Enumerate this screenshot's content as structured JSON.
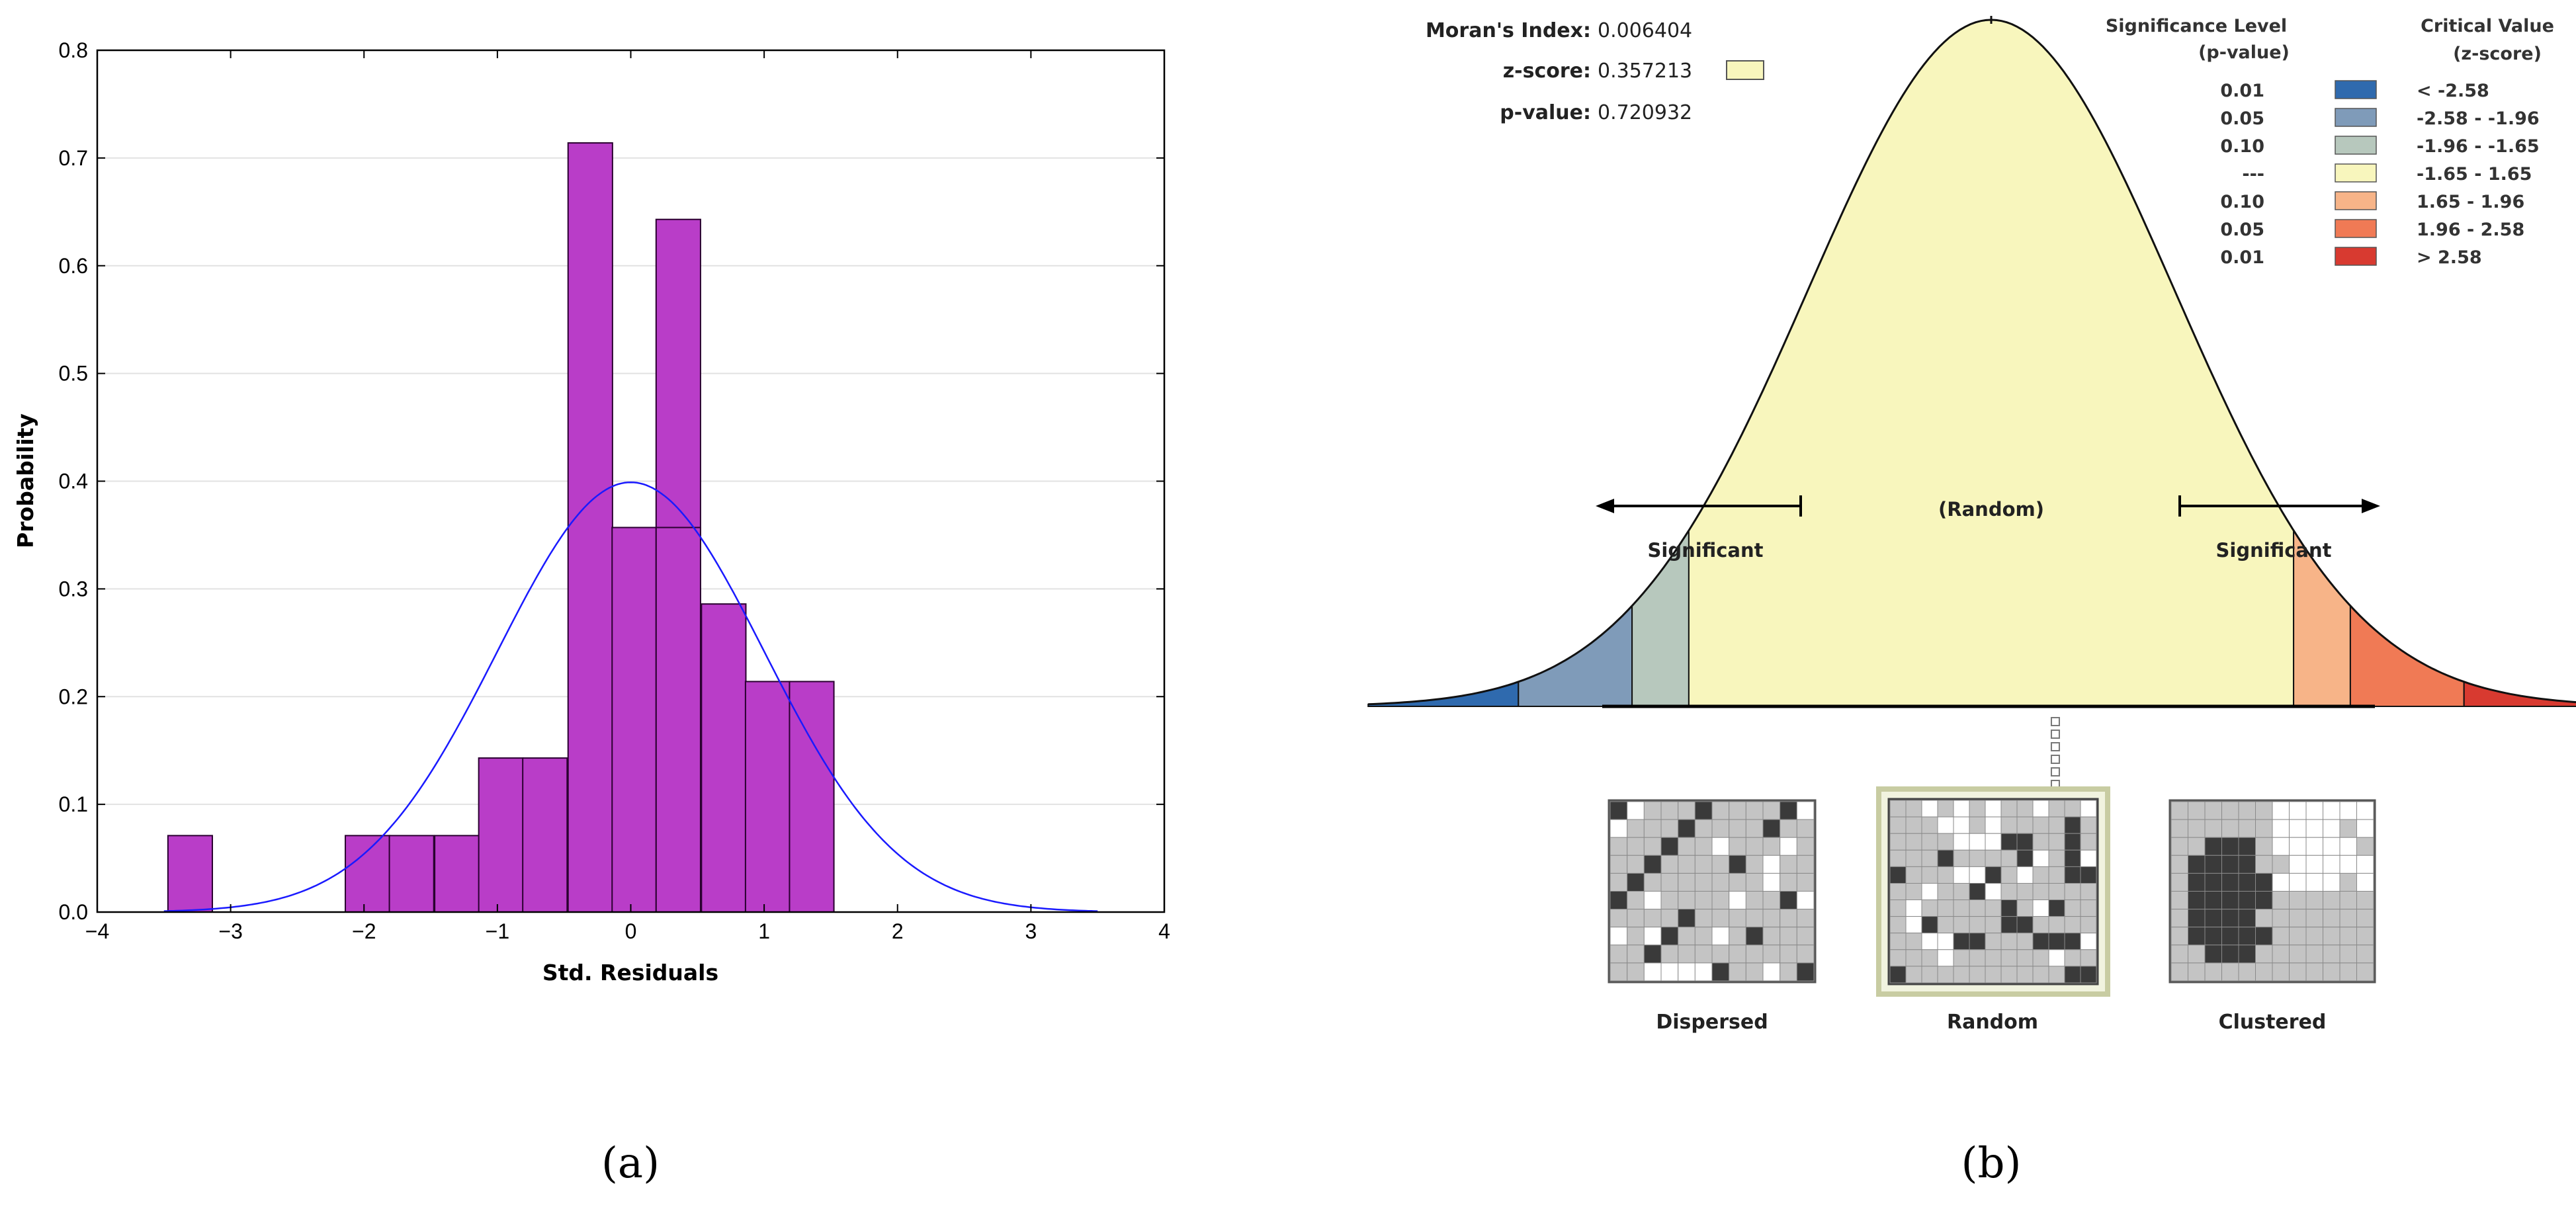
{
  "chart_data": [
    {
      "type": "bar",
      "title": "",
      "xlabel": "Std. Residuals",
      "ylabel": "Probability",
      "xlim": [
        -4,
        4
      ],
      "ylim": [
        0,
        0.8
      ],
      "xticks": [
        "−4",
        "−3",
        "−2",
        "−1",
        "0",
        "1",
        "2",
        "3",
        "4"
      ],
      "yticks": [
        "0.0",
        "0.1",
        "0.2",
        "0.3",
        "0.4",
        "0.5",
        "0.6",
        "0.7",
        "0.8"
      ],
      "bin_width": 0.333,
      "bins": [
        {
          "left": -3.47,
          "value": 0.071
        },
        {
          "left": -2.14,
          "value": 0.071
        },
        {
          "left": -1.81,
          "value": 0.071
        },
        {
          "left": -1.47,
          "value": 0.071
        },
        {
          "left": -1.14,
          "value": 0.143
        },
        {
          "left": -0.81,
          "value": 0.143
        },
        {
          "left": -0.47,
          "value": 0.714
        },
        {
          "left": -0.14,
          "value": 0.357
        },
        {
          "left": 0.19,
          "value": 0.643
        },
        {
          "left": 0.19,
          "value": 0.357
        },
        {
          "left": 0.53,
          "value": 0.286
        },
        {
          "left": 0.86,
          "value": 0.214
        },
        {
          "left": 1.19,
          "value": 0.214
        }
      ],
      "curve": {
        "name": "Normal PDF (mean 0, sd 1)",
        "mean": 0,
        "sd": 1,
        "xrange": [
          -3.5,
          3.5
        ]
      },
      "grid": true,
      "colors": {
        "bar": "#b93dc8",
        "bar_edge": "#2a0030",
        "curve": "#1a1aff",
        "grid": "#e2e2e2"
      },
      "caption": "(a)"
    },
    {
      "type": "diagram",
      "stats": {
        "morans_index_label": "Moran's Index:",
        "morans_index": "0.006404",
        "zscore_label": "z-score:",
        "zscore": "0.357213",
        "pvalue_label": "p-value:",
        "pvalue": "0.720932"
      },
      "legend": {
        "header_sig_1": "Significance Level",
        "header_sig_2": "(p-value)",
        "header_crit_1": "Critical Value",
        "header_crit_2": "(z-score)",
        "rows": [
          {
            "p": "0.01",
            "z": "< -2.58",
            "color": "#2f6aae"
          },
          {
            "p": "0.05",
            "z": "-2.58 - -1.96",
            "color": "#7f9bb9"
          },
          {
            "p": "0.10",
            "z": "-1.96 - -1.65",
            "color": "#b7c8bd"
          },
          {
            "p": "---",
            "z": "-1.65 - 1.65",
            "color": "#f8f6bd"
          },
          {
            "p": "0.10",
            "z": "1.65 - 1.96",
            "color": "#f7b488"
          },
          {
            "p": "0.05",
            "z": "1.96 - 2.58",
            "color": "#f07a55"
          },
          {
            "p": "0.01",
            "z": "> 2.58",
            "color": "#d83a30"
          }
        ]
      },
      "zscore_marker": 0.357213,
      "center_label": "(Random)",
      "left_label": "Significant",
      "right_label": "Significant",
      "maps": [
        {
          "label": "Dispersed"
        },
        {
          "label": "Random"
        },
        {
          "label": "Clustered"
        }
      ],
      "caption": "(b)"
    }
  ]
}
